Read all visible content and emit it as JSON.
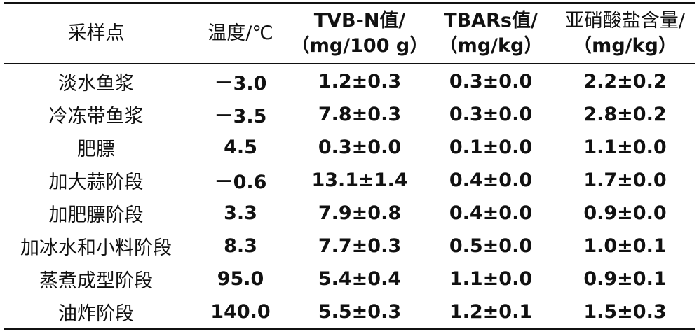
{
  "table": {
    "headers": [
      {
        "line1": "采样点",
        "line2": ""
      },
      {
        "line1": "温度/℃",
        "line2": ""
      },
      {
        "line1": "TVB-N值/",
        "line2": "（mg/100 g）"
      },
      {
        "line1": "TBARs值/",
        "line2": "（mg/kg）"
      },
      {
        "line1": "亚硝酸盐含量/",
        "line2": "（mg/kg）"
      }
    ],
    "rows": [
      {
        "point": "淡水鱼浆",
        "temp": "－3.0",
        "tvbn": "1.2±0.3",
        "tbars": "0.3±0.0",
        "nitrite": "2.2±0.2"
      },
      {
        "point": "冷冻带鱼浆",
        "temp": "－3.5",
        "tvbn": "7.8±0.3",
        "tbars": "0.3±0.0",
        "nitrite": "2.8±0.2"
      },
      {
        "point": "肥膘",
        "temp": "4.5",
        "tvbn": "0.3±0.0",
        "tbars": "0.1±0.0",
        "nitrite": "1.1±0.0"
      },
      {
        "point": "加大蒜阶段",
        "temp": "－0.6",
        "tvbn": "13.1±1.4",
        "tbars": "0.4±0.0",
        "nitrite": "1.7±0.0"
      },
      {
        "point": "加肥膘阶段",
        "temp": "3.3",
        "tvbn": "7.9±0.8",
        "tbars": "0.4±0.0",
        "nitrite": "0.9±0.0"
      },
      {
        "point": "加冰水和小料阶段",
        "temp": "8.3",
        "tvbn": "7.7±0.3",
        "tbars": "0.5±0.0",
        "nitrite": "1.0±0.1"
      },
      {
        "point": "蒸煮成型阶段",
        "temp": "95.0",
        "tvbn": "5.4±0.4",
        "tbars": "1.1±0.0",
        "nitrite": "0.9±0.1"
      },
      {
        "point": "油炸阶段",
        "temp": "140.0",
        "tvbn": "5.5±0.3",
        "tbars": "1.2±0.1",
        "nitrite": "1.5±0.3"
      }
    ]
  }
}
